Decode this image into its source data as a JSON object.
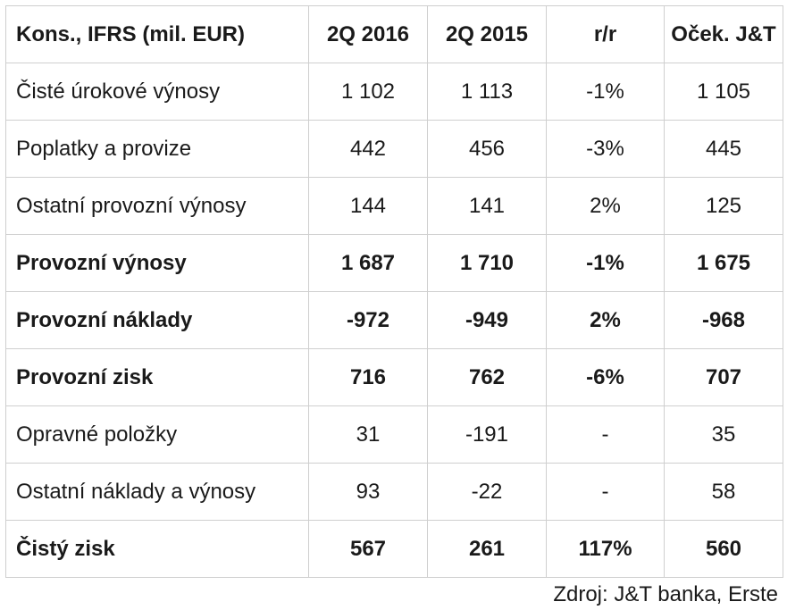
{
  "table": {
    "headers": [
      "Kons., IFRS (mil. EUR)",
      "2Q 2016",
      "2Q 2015",
      "r/r",
      "Oček. J&T"
    ],
    "rows": [
      {
        "cells": [
          "Čisté úrokové výnosy",
          "1 102",
          "1 113",
          "-1%",
          "1 105"
        ],
        "bold": false
      },
      {
        "cells": [
          "Poplatky a provize",
          "442",
          "456",
          "-3%",
          "445"
        ],
        "bold": false
      },
      {
        "cells": [
          "Ostatní provozní výnosy",
          "144",
          "141",
          "2%",
          "125"
        ],
        "bold": false
      },
      {
        "cells": [
          "Provozní výnosy",
          "1 687",
          "1 710",
          "-1%",
          "1 675"
        ],
        "bold": true
      },
      {
        "cells": [
          "Provozní náklady",
          "-972",
          "-949",
          "2%",
          "-968"
        ],
        "bold": true
      },
      {
        "cells": [
          "Provozní zisk",
          "716",
          "762",
          "-6%",
          "707"
        ],
        "bold": true
      },
      {
        "cells": [
          "Opravné položky",
          "31",
          "-191",
          "-",
          "35"
        ],
        "bold": false
      },
      {
        "cells": [
          "Ostatní náklady a výnosy",
          "93",
          "-22",
          "-",
          "58"
        ],
        "bold": false
      },
      {
        "cells": [
          "Čistý zisk",
          "567",
          "261",
          "117%",
          "560"
        ],
        "bold": true
      }
    ]
  },
  "source": "Zdroj: J&T banka, Erste"
}
